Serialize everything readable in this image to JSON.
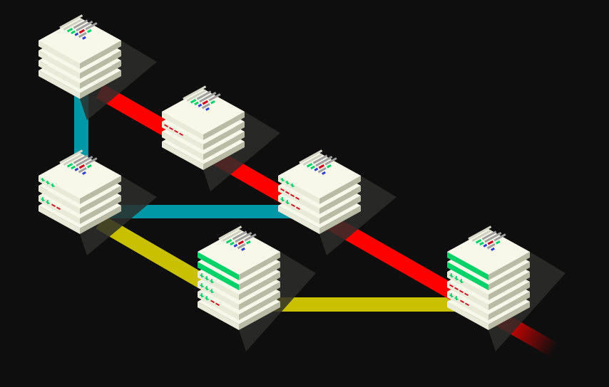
{
  "colors": {
    "background": "#0e0e0e",
    "branch_red": "#ff0000",
    "branch_teal": "#0097a7",
    "branch_yellow": "#c8c000",
    "page_top": "#f7f8ea",
    "page_side_left": "#e9ead7",
    "page_side_right": "#b9bba4",
    "code_green": "#00d26a",
    "code_red": "#d0021b",
    "code_blue": "#2f3fd0",
    "code_gray": "#a0a0a0",
    "shadow": "#2d2d2a"
  },
  "nodes": [
    {
      "id": "stack-a",
      "layers": 4,
      "marks": []
    },
    {
      "id": "stack-b",
      "layers": 4,
      "marks": [
        "",
        "removal"
      ]
    },
    {
      "id": "stack-c",
      "layers": 4,
      "marks": [
        "addition",
        "",
        "addition-removal"
      ]
    },
    {
      "id": "stack-d",
      "layers": 4,
      "marks": [
        "addition",
        "removal",
        "addition-removal"
      ]
    },
    {
      "id": "stack-e",
      "layers": 6,
      "marks": [
        "full-green",
        "full-green",
        "addition",
        "addition",
        "addition-removal"
      ]
    },
    {
      "id": "stack-f",
      "layers": 6,
      "marks": [
        "full-green",
        "full-green",
        "addition",
        "removal",
        "addition-removal"
      ]
    }
  ],
  "edges": [
    {
      "from": "stack-a",
      "to": "stack-c",
      "branch": "teal"
    },
    {
      "from": "stack-c",
      "to": "stack-d",
      "branch": "teal"
    },
    {
      "from": "stack-a",
      "to": "stack-f",
      "branch": "red"
    },
    {
      "from": "stack-c",
      "to": "stack-e",
      "branch": "yellow"
    },
    {
      "from": "stack-e",
      "to": "stack-f",
      "branch": "yellow"
    }
  ]
}
